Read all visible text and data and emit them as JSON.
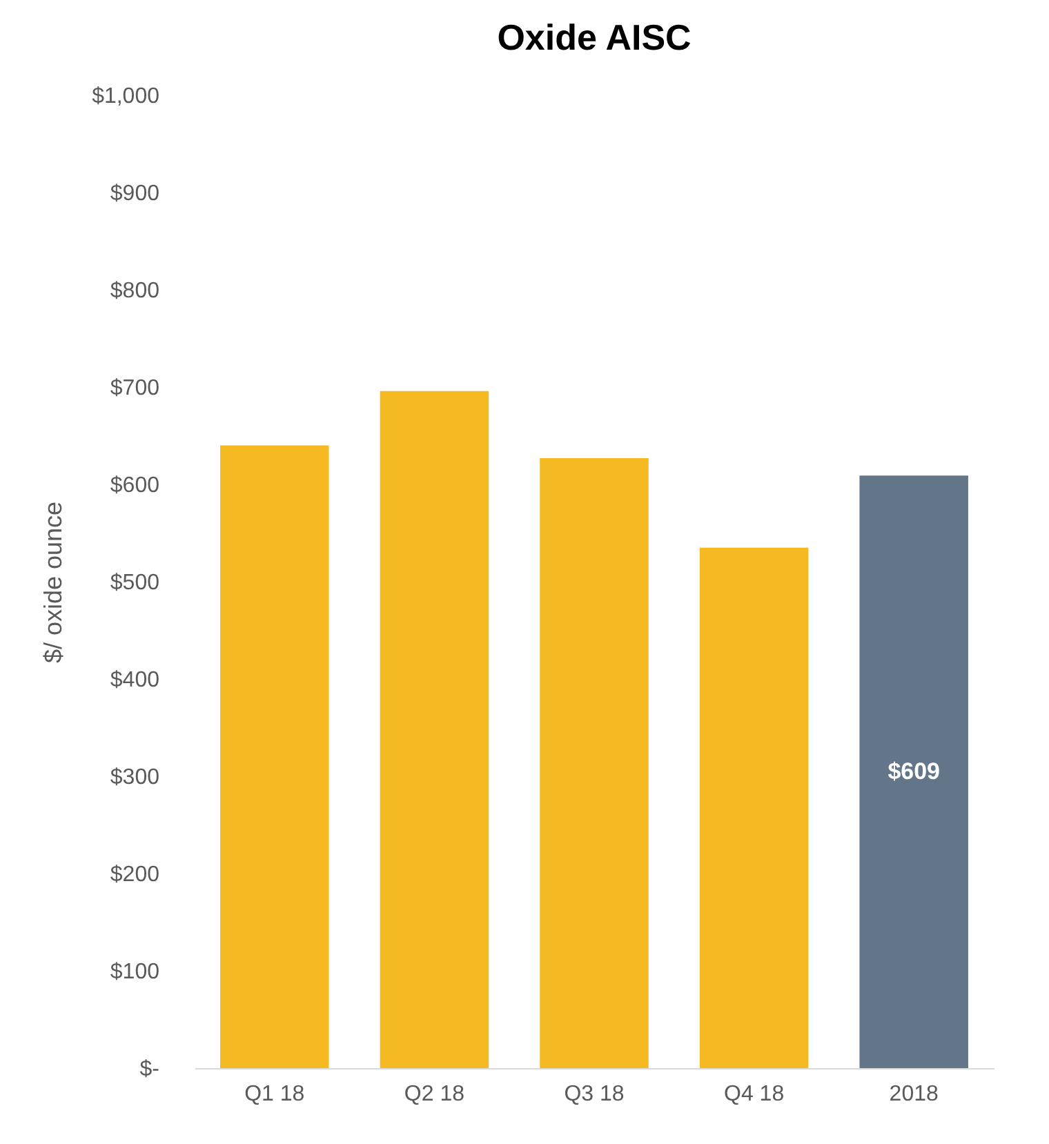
{
  "chart_data": {
    "type": "bar",
    "title": "Oxide AISC",
    "ylabel": "$/ oxide ounce",
    "categories": [
      "Q1 18",
      "Q2 18",
      "Q3 18",
      "Q4 18",
      "2018"
    ],
    "values": [
      640,
      696,
      627,
      535,
      609
    ],
    "colors": [
      "#f5b922",
      "#f5b922",
      "#f5b922",
      "#f5b922",
      "#637689"
    ],
    "value_labels": [
      null,
      null,
      null,
      null,
      "$609"
    ],
    "ylim": [
      0,
      1000
    ],
    "yticks": [
      {
        "value": 0,
        "label": "$-"
      },
      {
        "value": 100,
        "label": "$100"
      },
      {
        "value": 200,
        "label": "$200"
      },
      {
        "value": 300,
        "label": "$300"
      },
      {
        "value": 400,
        "label": "$400"
      },
      {
        "value": 500,
        "label": "$500"
      },
      {
        "value": 600,
        "label": "$600"
      },
      {
        "value": 700,
        "label": "$700"
      },
      {
        "value": 800,
        "label": "$800"
      },
      {
        "value": 900,
        "label": "$900"
      },
      {
        "value": 1000,
        "label": "$1,000"
      }
    ],
    "grid": false
  }
}
